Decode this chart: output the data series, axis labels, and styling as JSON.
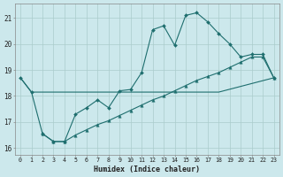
{
  "title": "",
  "xlabel": "Humidex (Indice chaleur)",
  "bg_color": "#cce8ec",
  "grid_color": "#aacccc",
  "line_color": "#1e6e6e",
  "xlim": [
    -0.5,
    23.5
  ],
  "ylim": [
    15.75,
    21.55
  ],
  "xticks": [
    0,
    1,
    2,
    3,
    4,
    5,
    6,
    7,
    8,
    9,
    10,
    11,
    12,
    13,
    14,
    15,
    16,
    17,
    18,
    19,
    20,
    21,
    22,
    23
  ],
  "yticks": [
    16,
    17,
    18,
    19,
    20,
    21
  ],
  "line1_x": [
    0,
    1,
    2,
    3,
    4,
    5,
    6,
    7,
    8,
    9,
    10,
    11,
    12,
    13,
    14,
    15,
    16,
    17,
    18,
    19,
    20,
    21,
    22,
    23
  ],
  "line1_y": [
    18.7,
    18.15,
    16.55,
    16.25,
    16.25,
    17.3,
    17.55,
    17.85,
    17.55,
    18.2,
    18.25,
    18.9,
    20.55,
    20.7,
    19.95,
    21.1,
    21.2,
    20.85,
    20.4,
    20.0,
    19.5,
    19.6,
    19.6,
    18.7
  ],
  "line2_x": [
    0,
    1,
    2,
    3,
    4,
    5,
    6,
    7,
    8,
    9,
    10,
    11,
    12,
    13,
    14,
    15,
    16,
    17,
    18,
    23
  ],
  "line2_y": [
    18.7,
    18.15,
    18.15,
    18.15,
    18.15,
    18.15,
    18.15,
    18.15,
    18.15,
    18.15,
    18.15,
    18.15,
    18.15,
    18.15,
    18.15,
    18.15,
    18.15,
    18.15,
    18.15,
    18.7
  ],
  "line3_x": [
    2,
    3,
    4,
    5,
    6,
    7,
    8,
    9,
    10,
    11,
    12,
    13,
    14,
    15,
    16,
    17,
    18,
    19,
    20,
    21,
    22,
    23
  ],
  "line3_y": [
    16.55,
    16.25,
    16.25,
    16.5,
    16.7,
    16.9,
    17.05,
    17.25,
    17.45,
    17.65,
    17.85,
    18.0,
    18.2,
    18.4,
    18.6,
    18.75,
    18.9,
    19.1,
    19.3,
    19.5,
    19.5,
    18.7
  ]
}
